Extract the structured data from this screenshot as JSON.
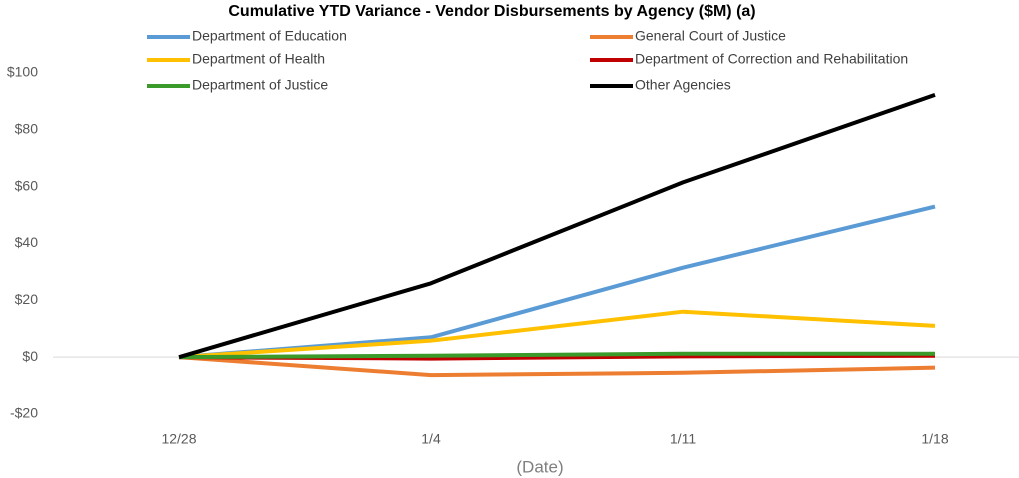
{
  "chart_data": {
    "type": "line",
    "title": "Cumulative YTD Variance - Vendor Disbursements by Agency ($M) (a)",
    "x_label": "(Date)",
    "categories": [
      "12/28",
      "1/4",
      "1/11",
      "1/18"
    ],
    "series": [
      {
        "name": "Department of Education",
        "color": "#5b9bd5",
        "values": [
          0,
          7,
          31.5,
          53
        ]
      },
      {
        "name": "General Court of Justice",
        "color": "#ed7d31",
        "values": [
          0,
          -6.3,
          -5.5,
          -3.7
        ]
      },
      {
        "name": "Department of Health",
        "color": "#ffc000",
        "values": [
          0,
          5.8,
          16,
          11
        ]
      },
      {
        "name": "Department of Correction and Rehabilitation",
        "color": "#c00000",
        "values": [
          0,
          -0.5,
          0.3,
          0.5
        ]
      },
      {
        "name": "Department of Justice",
        "color": "#3a9a2a",
        "values": [
          0,
          0.5,
          1.2,
          1.2
        ]
      },
      {
        "name": "Other Agencies",
        "color": "#000000",
        "values": [
          0,
          26,
          61.5,
          92.3
        ]
      }
    ],
    "ylim": [
      -20,
      100
    ],
    "yticks": [
      {
        "value": -20,
        "label": "-$20"
      },
      {
        "value": 0,
        "label": "$0"
      },
      {
        "value": 20,
        "label": "$20"
      },
      {
        "value": 40,
        "label": "$40"
      },
      {
        "value": 60,
        "label": "$60"
      },
      {
        "value": 80,
        "label": "$80"
      },
      {
        "value": 100,
        "label": "$100"
      }
    ],
    "grid": false
  }
}
